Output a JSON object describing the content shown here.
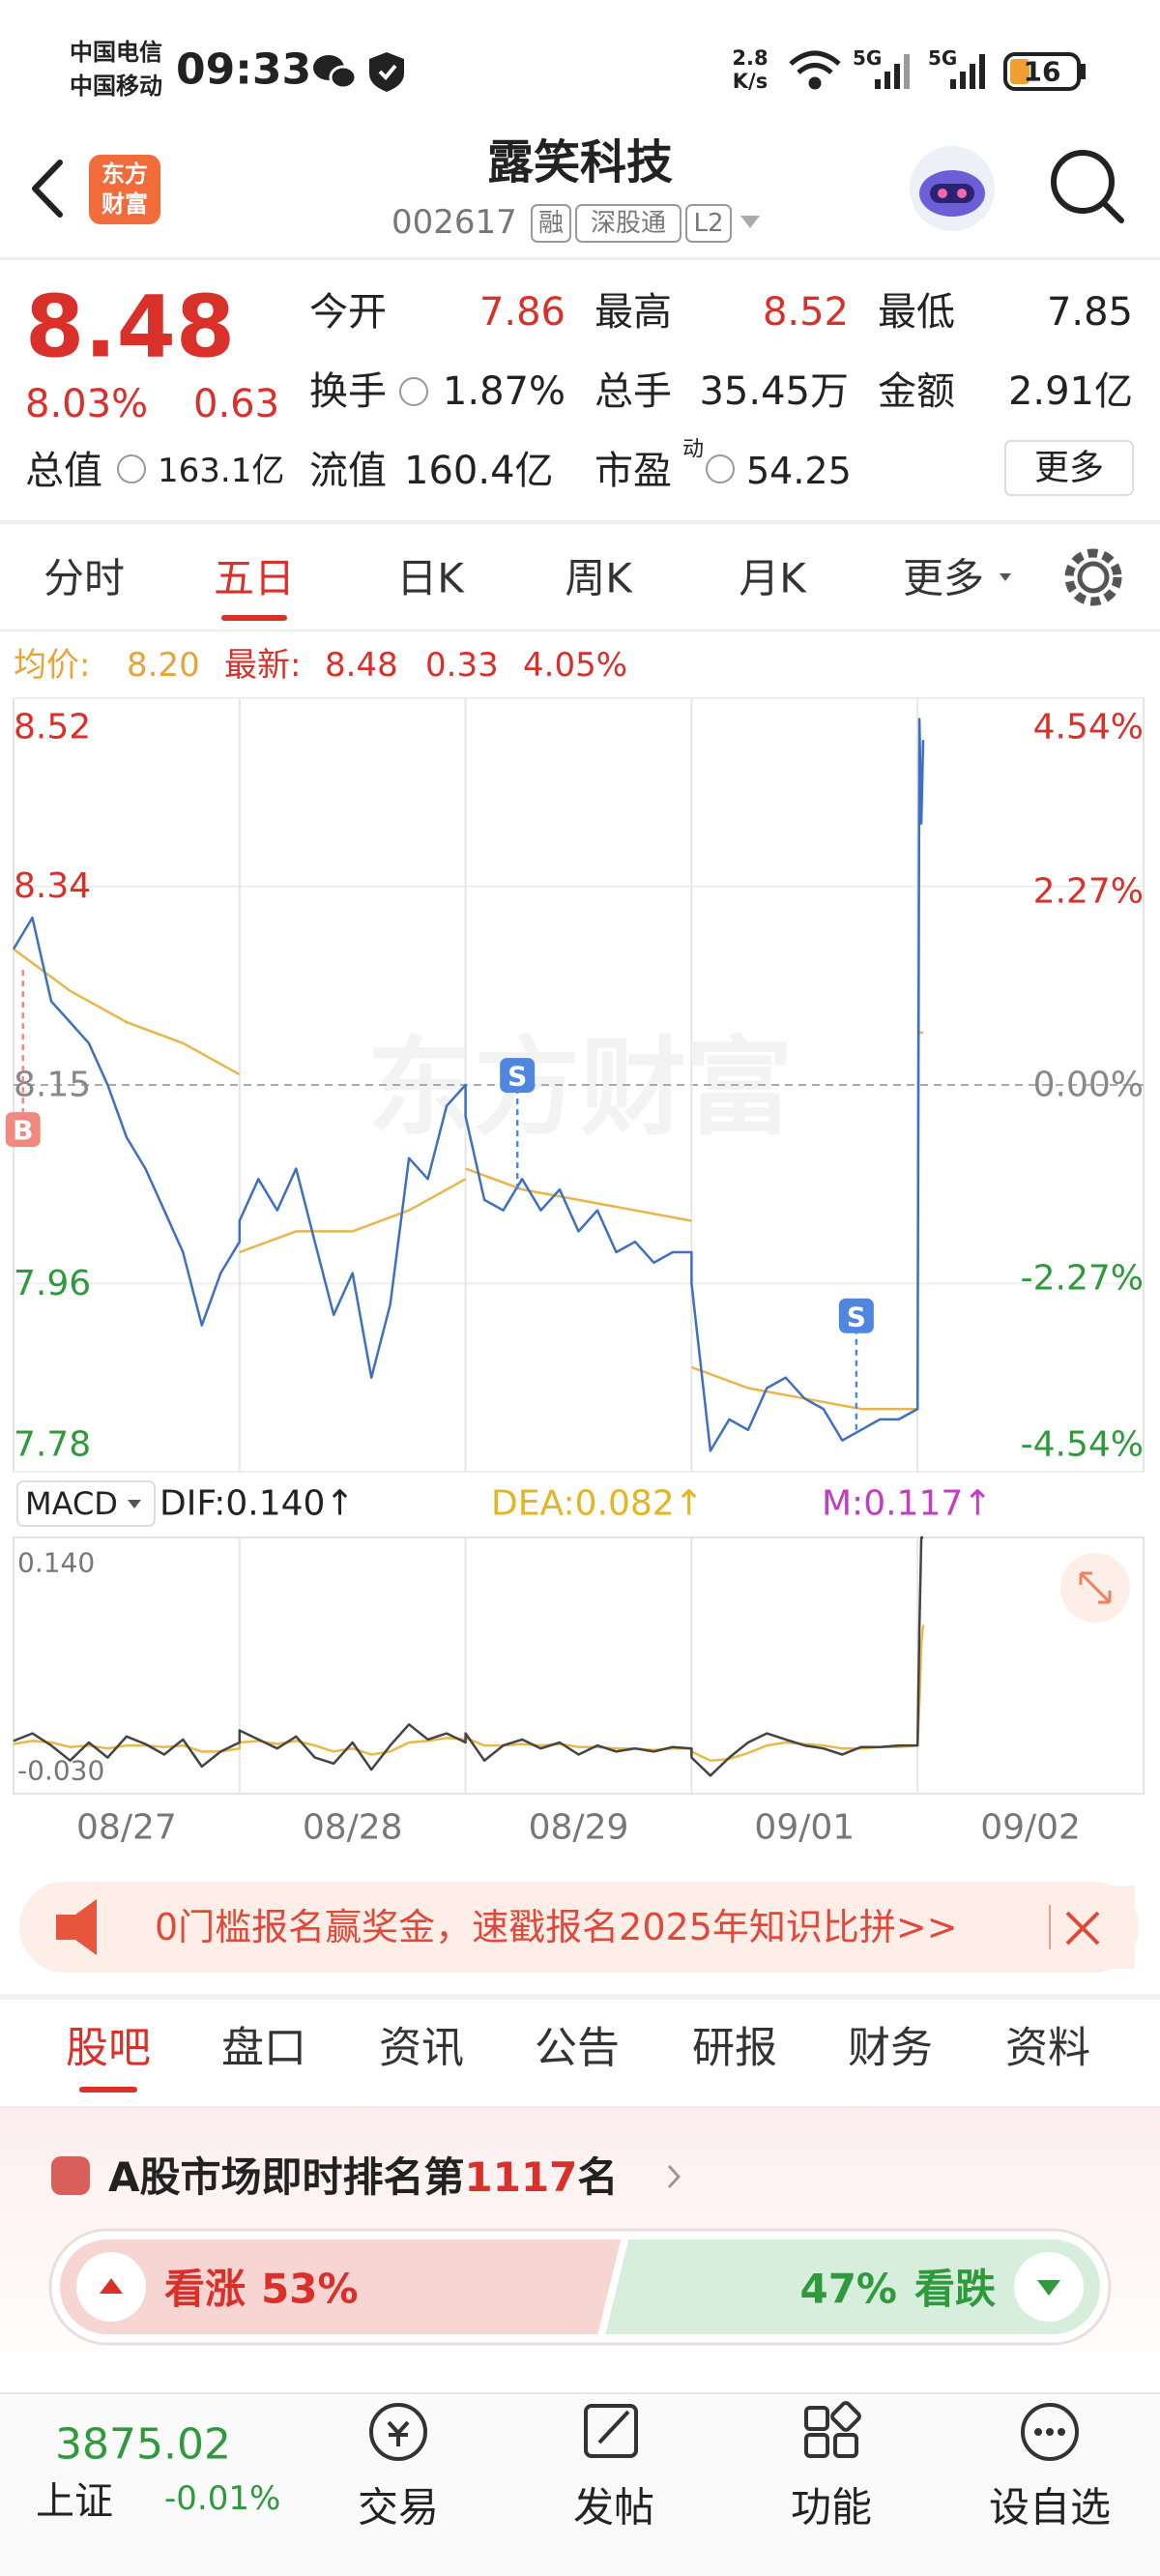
{
  "status_bar": {
    "carrier1": "中国电信",
    "carrier2": "中国移动",
    "time": "09:33",
    "speed": "2.8",
    "speed_unit": "K/s",
    "net1": "5G",
    "net2": "5G",
    "battery": "16"
  },
  "header": {
    "logo_line1": "东方",
    "logo_line2": "财富",
    "title": "露笑科技",
    "code": "002617",
    "badges": [
      "融",
      "深股通",
      "L2"
    ]
  },
  "quote": {
    "price": "8.48",
    "change_pct": "8.03%",
    "change": "0.63",
    "fields": [
      {
        "label": "今开",
        "value": "7.86"
      },
      {
        "label": "最高",
        "value": "8.52"
      },
      {
        "label": "最低",
        "value": "7.85"
      },
      {
        "label": "换手",
        "value": "1.87%"
      },
      {
        "label": "总手",
        "value": "35.45万"
      },
      {
        "label": "金额",
        "value": "2.91亿"
      },
      {
        "label": "总值",
        "value": "163.1亿"
      },
      {
        "label": "流值",
        "value": "160.4亿"
      },
      {
        "label": "市盈",
        "sup": "动",
        "value": "54.25"
      }
    ],
    "more": "更多"
  },
  "period_tabs": {
    "items": [
      "分时",
      "五日",
      "日K",
      "周K",
      "月K",
      "更多"
    ],
    "active": 1
  },
  "chart_info": {
    "avg_label": "均价:",
    "avg": "8.20",
    "latest_label": "最新:",
    "latest": "8.48",
    "change": "0.33",
    "change_pct": "4.05%"
  },
  "chart": {
    "type": "line",
    "watermark": "东方财富",
    "xlim": [
      0,
      1200
    ],
    "xticks": [
      240,
      480,
      720,
      960
    ],
    "dates": [
      "08/27",
      "08/28",
      "08/29",
      "09/01",
      "09/02"
    ],
    "ylim": [
      7.78,
      8.52
    ],
    "yticks": [
      8.52,
      8.34,
      8.15,
      7.96,
      7.78
    ],
    "y2lim": [
      -4.54,
      4.54
    ],
    "y2ticks": [
      {
        "value": 4.54,
        "label": "4.54%"
      },
      {
        "value": 2.27,
        "label": "2.27%"
      },
      {
        "value": 0,
        "label": "0.00%"
      },
      {
        "value": -2.27,
        "label": "-2.27%"
      },
      {
        "value": -4.54,
        "label": "-4.54%"
      }
    ],
    "price": {
      "color": "#3d6fc2",
      "x": [
        0,
        20,
        40,
        60,
        80,
        100,
        120,
        140,
        160,
        180,
        200,
        220,
        240,
        240,
        260,
        280,
        300,
        320,
        340,
        360,
        380,
        400,
        420,
        440,
        460,
        480,
        480,
        500,
        520,
        540,
        560,
        580,
        600,
        620,
        640,
        660,
        680,
        700,
        720,
        720,
        740,
        760,
        780,
        800,
        820,
        840,
        860,
        880,
        900,
        920,
        940,
        960,
        962,
        964,
        966
      ],
      "values": [
        8.28,
        8.31,
        8.23,
        8.21,
        8.19,
        8.15,
        8.1,
        8.07,
        8.03,
        7.99,
        7.92,
        7.97,
        8.0,
        8.02,
        8.06,
        8.03,
        8.07,
        8.0,
        7.93,
        7.97,
        7.87,
        7.94,
        8.08,
        8.06,
        8.13,
        8.15,
        8.12,
        8.04,
        8.03,
        8.06,
        8.03,
        8.05,
        8.01,
        8.03,
        7.99,
        8.0,
        7.98,
        7.99,
        7.99,
        7.96,
        7.8,
        7.83,
        7.82,
        7.86,
        7.87,
        7.85,
        7.84,
        7.81,
        7.82,
        7.83,
        7.83,
        7.84,
        8.5,
        8.4,
        8.48
      ]
    },
    "average": {
      "color": "#e9b54a",
      "x": [
        0,
        60,
        120,
        180,
        240,
        240,
        240,
        300,
        360,
        420,
        480,
        480,
        480,
        540,
        600,
        660,
        720,
        720,
        720,
        780,
        840,
        900,
        960,
        960,
        962,
        966
      ],
      "values": [
        8.28,
        8.24,
        8.21,
        8.19,
        8.16,
        null,
        7.99,
        8.01,
        8.01,
        8.03,
        8.06,
        null,
        8.07,
        8.05,
        8.04,
        8.03,
        8.02,
        null,
        7.88,
        7.86,
        7.85,
        7.84,
        7.84,
        null,
        8.2,
        8.2
      ]
    },
    "markers": [
      {
        "label": "B",
        "x": 10,
        "value": 8.26
      },
      {
        "label": "S",
        "x": 535,
        "value": 8.05
      },
      {
        "label": "S",
        "x": 895,
        "value": 7.82
      }
    ]
  },
  "macd": {
    "selector": "MACD",
    "dif_label": "DIF:0.140↑",
    "dea_label": "DEA:0.082↑",
    "m_label": "M:0.117↑",
    "ylim": [
      -0.03,
      0.14
    ],
    "yticks": [
      {
        "value": 0.14,
        "label": "0.140"
      },
      {
        "value": -0.03,
        "label": "-0.030"
      }
    ],
    "dif": {
      "color": "#444444",
      "values": [
        0.005,
        0.01,
        0.002,
        -0.008,
        0.004,
        -0.006,
        0.008,
        0.003,
        -0.004,
        0.006,
        -0.012,
        -0.002,
        0.004,
        0.012,
        0.006,
        0.0,
        0.008,
        -0.006,
        -0.01,
        0.004,
        -0.014,
        0.002,
        0.016,
        0.006,
        0.01,
        0.004,
        0.01,
        -0.008,
        0.002,
        0.006,
        0.0,
        0.004,
        -0.004,
        0.002,
        -0.002,
        0.0,
        -0.002,
        0.001,
        0.0,
        -0.006,
        -0.018,
        -0.006,
        0.004,
        0.01,
        0.006,
        0.002,
        0.0,
        -0.004,
        0.001,
        0.001,
        0.002,
        0.002,
        0.08,
        0.14,
        0.14
      ]
    },
    "dea": {
      "color": "#e8b84a",
      "values": [
        0.003,
        0.005,
        0.004,
        0.001,
        0.002,
        0.0,
        0.002,
        0.002,
        0.001,
        0.002,
        -0.002,
        -0.002,
        0.0,
        0.004,
        0.005,
        0.003,
        0.005,
        0.002,
        -0.002,
        0.0,
        -0.004,
        -0.002,
        0.004,
        0.005,
        0.007,
        0.006,
        0.007,
        0.002,
        0.002,
        0.003,
        0.002,
        0.003,
        0.001,
        0.001,
        0.0,
        0.0,
        -0.001,
        0.0,
        0.0,
        -0.002,
        -0.008,
        -0.007,
        -0.003,
        0.002,
        0.004,
        0.003,
        0.002,
        0.0,
        0.0,
        0.001,
        0.001,
        0.002,
        0.03,
        0.07,
        0.082
      ]
    }
  },
  "banner": {
    "text": "0门槛报名赢奖金，速戳报名2025年知识比拼>>"
  },
  "content_tabs": {
    "items": [
      "股吧",
      "盘口",
      "资讯",
      "公告",
      "研报",
      "财务",
      "资料"
    ],
    "active": 0
  },
  "ranking": {
    "prefix": "A股市场即时排名第",
    "rank": "1117",
    "suffix": "名"
  },
  "sentiment": {
    "up": {
      "label": "看涨",
      "value": 53,
      "value_label": "53%"
    },
    "down": {
      "label": "看跌",
      "value": 47,
      "value_label": "47%"
    }
  },
  "bottom_nav": {
    "index": {
      "value": "3875.02",
      "name": "上证",
      "change": "-0.01%"
    },
    "items": [
      "交易",
      "发帖",
      "功能",
      "设自选"
    ]
  }
}
